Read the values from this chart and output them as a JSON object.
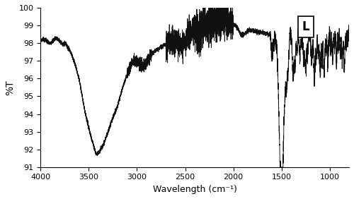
{
  "title": "",
  "xlabel": "Wavelength (cm⁻¹)",
  "ylabel": "%T",
  "xlim": [
    4000,
    800
  ],
  "ylim": [
    91,
    100
  ],
  "yticks": [
    91,
    92,
    93,
    94,
    95,
    96,
    97,
    98,
    99,
    100
  ],
  "xticks": [
    4000,
    3500,
    3000,
    2500,
    2000,
    1500,
    1000
  ],
  "label_text": "L",
  "line_color": "#111111",
  "background_color": "#ffffff",
  "seed": 7
}
